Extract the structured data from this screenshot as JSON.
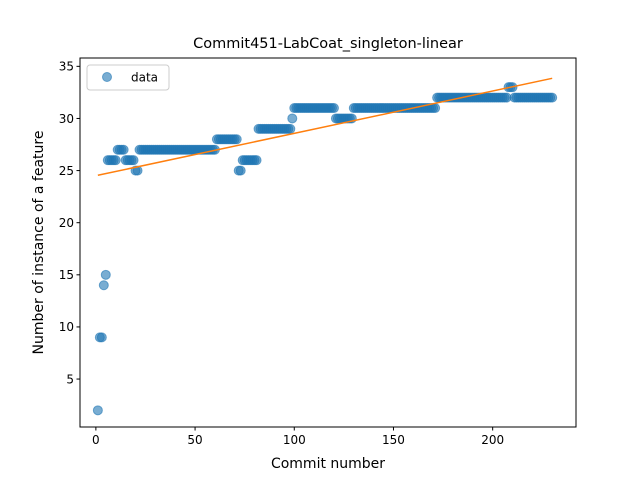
{
  "chart_data": {
    "type": "scatter",
    "title": "Commit451-LabCoat_singleton-linear",
    "xlabel": "Commit number",
    "ylabel": "Number of instance of a feature",
    "xlim": [
      -8,
      242
    ],
    "ylim": [
      0.4,
      35.8
    ],
    "xticks": [
      0,
      50,
      100,
      150,
      200
    ],
    "yticks": [
      5,
      10,
      15,
      20,
      25,
      30,
      35
    ],
    "legend": {
      "position": "top-left",
      "entries": [
        "data"
      ]
    },
    "colors": {
      "data": "#1f77b4",
      "fit": "#ff7f0e"
    },
    "series": [
      {
        "name": "data",
        "kind": "scatter",
        "runs": [
          {
            "x": [
              1,
              1
            ],
            "y": 2
          },
          {
            "x": [
              2,
              3
            ],
            "y": 9
          },
          {
            "x": [
              4,
              4
            ],
            "y": 14
          },
          {
            "x": [
              5,
              5
            ],
            "y": 15
          },
          {
            "x": [
              6,
              10
            ],
            "y": 26
          },
          {
            "x": [
              11,
              14
            ],
            "y": 27
          },
          {
            "x": [
              15,
              19
            ],
            "y": 26
          },
          {
            "x": [
              20,
              21
            ],
            "y": 25
          },
          {
            "x": [
              22,
              60
            ],
            "y": 27
          },
          {
            "x": [
              61,
              71
            ],
            "y": 28
          },
          {
            "x": [
              72,
              73
            ],
            "y": 25
          },
          {
            "x": [
              74,
              81
            ],
            "y": 26
          },
          {
            "x": [
              82,
              98
            ],
            "y": 29
          },
          {
            "x": [
              99,
              99
            ],
            "y": 30
          },
          {
            "x": [
              100,
              120
            ],
            "y": 31
          },
          {
            "x": [
              121,
              129
            ],
            "y": 30
          },
          {
            "x": [
              130,
              171
            ],
            "y": 31
          },
          {
            "x": [
              172,
              207
            ],
            "y": 32
          },
          {
            "x": [
              208,
              210
            ],
            "y": 33
          },
          {
            "x": [
              211,
              230
            ],
            "y": 32
          }
        ]
      },
      {
        "name": "",
        "kind": "line",
        "x": [
          1,
          230
        ],
        "y": [
          24.55,
          33.85
        ]
      }
    ]
  }
}
